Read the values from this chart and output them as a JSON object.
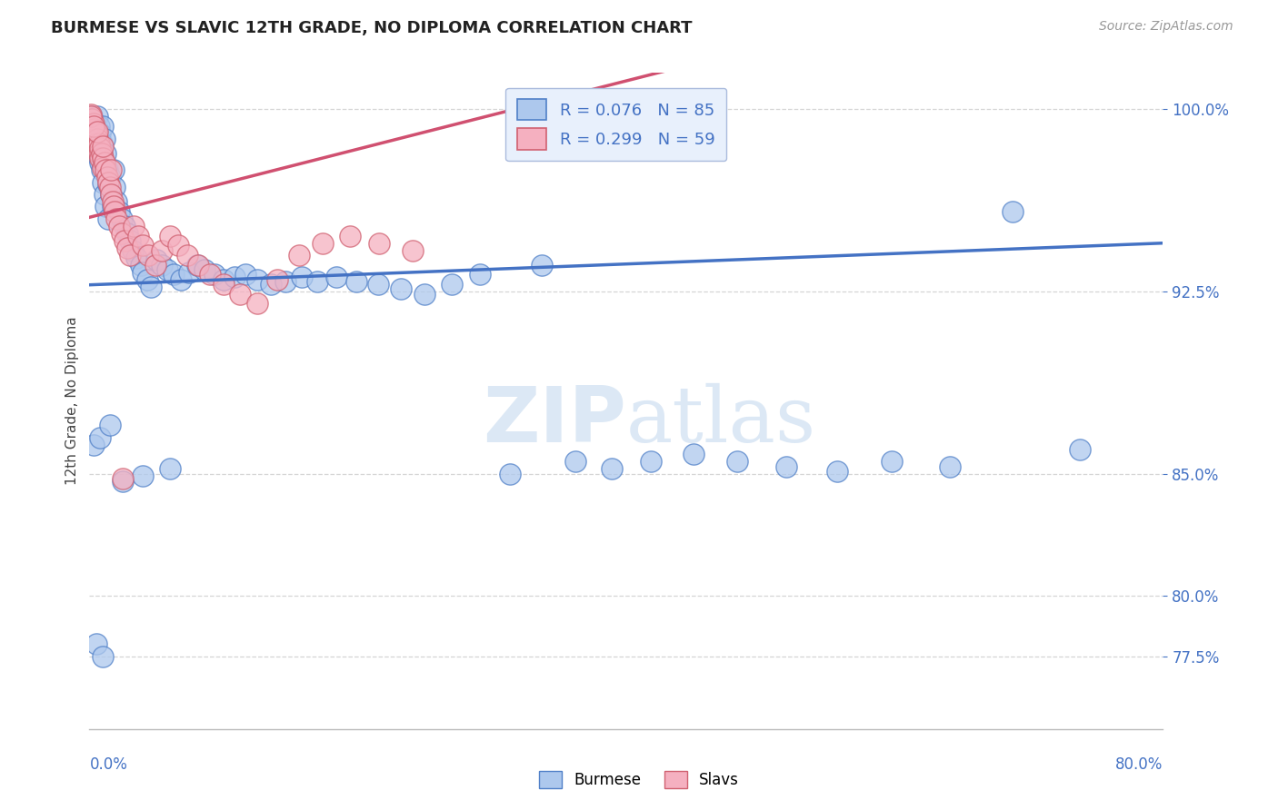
{
  "title": "BURMESE VS SLAVIC 12TH GRADE, NO DIPLOMA CORRELATION CHART",
  "source": "Source: ZipAtlas.com",
  "ylabel": "12th Grade, No Diploma",
  "yticks": [
    0.775,
    0.8,
    0.85,
    0.925,
    1.0
  ],
  "ytick_labels": [
    "77.5%",
    "80.0%",
    "85.0%",
    "92.5%",
    "100.0%"
  ],
  "xmin": 0.0,
  "xmax": 0.8,
  "ymin": 0.745,
  "ymax": 1.015,
  "burmese_R": 0.076,
  "burmese_N": 85,
  "slavs_R": 0.299,
  "slavs_N": 59,
  "burmese_fill": "#adc8ed",
  "slavs_fill": "#f5b0c0",
  "burmese_edge": "#5080c8",
  "slavs_edge": "#d06070",
  "burmese_line": "#4472c4",
  "slavs_line": "#d05070",
  "legend_bg": "#e8f0fc",
  "watermark": "#dce8f5",
  "grid_color": "#d5d5d5",
  "burmese_x": [
    0.002,
    0.003,
    0.003,
    0.004,
    0.005,
    0.005,
    0.006,
    0.006,
    0.007,
    0.007,
    0.008,
    0.008,
    0.009,
    0.009,
    0.01,
    0.01,
    0.011,
    0.011,
    0.012,
    0.012,
    0.013,
    0.014,
    0.014,
    0.015,
    0.016,
    0.017,
    0.018,
    0.019,
    0.02,
    0.022,
    0.024,
    0.026,
    0.028,
    0.03,
    0.032,
    0.035,
    0.038,
    0.04,
    0.043,
    0.046,
    0.05,
    0.054,
    0.058,
    0.063,
    0.068,
    0.074,
    0.08,
    0.086,
    0.093,
    0.1,
    0.108,
    0.116,
    0.125,
    0.135,
    0.146,
    0.158,
    0.17,
    0.184,
    0.199,
    0.215,
    0.232,
    0.25,
    0.27,
    0.291,
    0.313,
    0.337,
    0.362,
    0.389,
    0.418,
    0.45,
    0.483,
    0.519,
    0.557,
    0.598,
    0.641,
    0.688,
    0.738,
    0.003,
    0.008,
    0.015,
    0.025,
    0.04,
    0.06,
    0.005,
    0.01
  ],
  "burmese_y": [
    0.997,
    0.995,
    0.99,
    0.992,
    0.988,
    0.983,
    0.997,
    0.985,
    0.993,
    0.98,
    0.99,
    0.978,
    0.986,
    0.975,
    0.993,
    0.97,
    0.988,
    0.965,
    0.982,
    0.96,
    0.975,
    0.969,
    0.955,
    0.972,
    0.965,
    0.96,
    0.975,
    0.968,
    0.962,
    0.958,
    0.955,
    0.952,
    0.949,
    0.946,
    0.942,
    0.939,
    0.936,
    0.933,
    0.93,
    0.927,
    0.938,
    0.936,
    0.934,
    0.932,
    0.93,
    0.933,
    0.936,
    0.934,
    0.932,
    0.93,
    0.931,
    0.932,
    0.93,
    0.928,
    0.929,
    0.931,
    0.929,
    0.931,
    0.929,
    0.928,
    0.926,
    0.924,
    0.928,
    0.932,
    0.85,
    0.936,
    0.855,
    0.852,
    0.855,
    0.858,
    0.855,
    0.853,
    0.851,
    0.855,
    0.853,
    0.958,
    0.86,
    0.862,
    0.865,
    0.87,
    0.847,
    0.849,
    0.852,
    0.78,
    0.775
  ],
  "slavs_x": [
    0.001,
    0.002,
    0.002,
    0.003,
    0.003,
    0.004,
    0.004,
    0.005,
    0.005,
    0.006,
    0.006,
    0.007,
    0.007,
    0.008,
    0.008,
    0.009,
    0.01,
    0.01,
    0.011,
    0.012,
    0.013,
    0.014,
    0.015,
    0.016,
    0.017,
    0.018,
    0.019,
    0.02,
    0.022,
    0.024,
    0.026,
    0.028,
    0.03,
    0.033,
    0.036,
    0.04,
    0.044,
    0.049,
    0.054,
    0.06,
    0.066,
    0.073,
    0.081,
    0.09,
    0.1,
    0.112,
    0.125,
    0.14,
    0.156,
    0.174,
    0.194,
    0.216,
    0.241,
    0.001,
    0.003,
    0.006,
    0.01,
    0.016,
    0.025
  ],
  "slavs_y": [
    0.998,
    0.996,
    0.992,
    0.994,
    0.99,
    0.992,
    0.988,
    0.99,
    0.986,
    0.988,
    0.984,
    0.986,
    0.982,
    0.984,
    0.98,
    0.982,
    0.98,
    0.976,
    0.978,
    0.975,
    0.972,
    0.97,
    0.968,
    0.965,
    0.962,
    0.96,
    0.958,
    0.955,
    0.952,
    0.949,
    0.946,
    0.943,
    0.94,
    0.952,
    0.948,
    0.944,
    0.94,
    0.936,
    0.942,
    0.948,
    0.944,
    0.94,
    0.936,
    0.932,
    0.928,
    0.924,
    0.92,
    0.93,
    0.94,
    0.945,
    0.948,
    0.945,
    0.942,
    0.997,
    0.993,
    0.991,
    0.985,
    0.975,
    0.848
  ]
}
